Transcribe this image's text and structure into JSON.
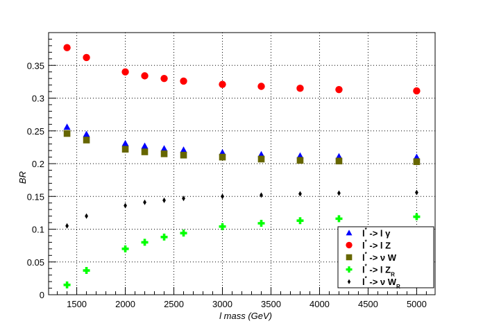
{
  "chart_data": {
    "type": "scatter",
    "xlabel": "l mass (GeV)",
    "ylabel": "BR",
    "xlim": [
      1210,
      5190
    ],
    "ylim": [
      0,
      0.4
    ],
    "grid": true,
    "legend_position": "bottom-right",
    "x_ticks": [
      1500,
      2000,
      2500,
      3000,
      3500,
      4000,
      4500,
      5000
    ],
    "x_tick_labels": [
      "1500",
      "2000",
      "2500",
      "3000",
      "3500",
      "4000",
      "4500",
      "5000"
    ],
    "y_ticks": [
      0,
      0.05,
      0.1,
      0.15,
      0.2,
      0.25,
      0.3,
      0.35
    ],
    "y_tick_labels": [
      "0",
      "0.05",
      "0.1",
      "0.15",
      "0.2",
      "0.25",
      "0.3",
      "0.35"
    ],
    "series": [
      {
        "name": "l* -> l γ",
        "legend": {
          "main": "l",
          "sup": "*",
          "rest": " -> l γ",
          "sub": ""
        },
        "marker": "triangle",
        "color": "#0000ff",
        "x": [
          1400,
          1600,
          2000,
          2200,
          2400,
          2600,
          3000,
          3400,
          3800,
          4200,
          5000
        ],
        "y": [
          0.256,
          0.245,
          0.231,
          0.227,
          0.223,
          0.221,
          0.217,
          0.214,
          0.212,
          0.211,
          0.21
        ]
      },
      {
        "name": "l* -> l Z",
        "legend": {
          "main": "l",
          "sup": "*",
          "rest": " -> l Z",
          "sub": ""
        },
        "marker": "circle",
        "color": "#ff0000",
        "x": [
          1400,
          1600,
          2000,
          2200,
          2400,
          2600,
          3000,
          3400,
          3800,
          4200,
          5000
        ],
        "y": [
          0.377,
          0.362,
          0.34,
          0.334,
          0.33,
          0.326,
          0.321,
          0.318,
          0.315,
          0.313,
          0.311
        ]
      },
      {
        "name": "l* -> ν W",
        "legend": {
          "main": "l",
          "sup": "*",
          "rest": " -> ν  W",
          "sub": ""
        },
        "marker": "square",
        "color": "#666600",
        "x": [
          1400,
          1600,
          2000,
          2200,
          2400,
          2600,
          3000,
          3400,
          3800,
          4200,
          5000
        ],
        "y": [
          0.246,
          0.236,
          0.222,
          0.218,
          0.215,
          0.213,
          0.21,
          0.207,
          0.205,
          0.204,
          0.203
        ]
      },
      {
        "name": "l* -> l Z_R",
        "legend": {
          "main": "l",
          "sup": "*",
          "rest": " -> l Z",
          "sub": "R"
        },
        "marker": "cross",
        "color": "#00ff00",
        "x": [
          1400,
          1600,
          2000,
          2200,
          2400,
          2600,
          3000,
          3400,
          3800,
          4200,
          5000
        ],
        "y": [
          0.015,
          0.037,
          0.07,
          0.08,
          0.088,
          0.094,
          0.104,
          0.109,
          0.113,
          0.116,
          0.119
        ]
      },
      {
        "name": "l* -> ν W_R",
        "legend": {
          "main": "l",
          "sup": "*",
          "rest": " -> ν  W",
          "sub": "R"
        },
        "marker": "diamond",
        "color": "#000000",
        "x": [
          1400,
          1600,
          2000,
          2200,
          2400,
          2600,
          3000,
          3400,
          3800,
          4200,
          5000
        ],
        "y": [
          0.105,
          0.12,
          0.136,
          0.141,
          0.144,
          0.147,
          0.15,
          0.152,
          0.154,
          0.155,
          0.156
        ]
      }
    ]
  }
}
